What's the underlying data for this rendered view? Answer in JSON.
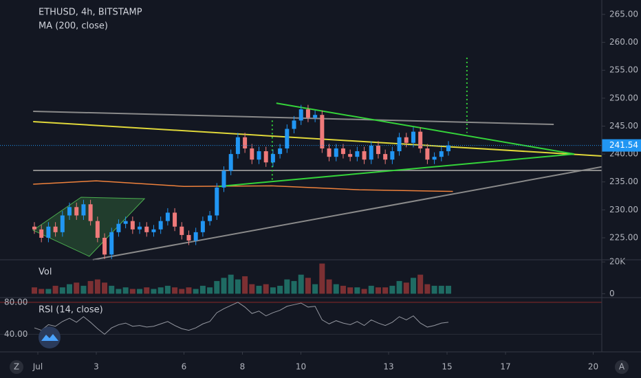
{
  "chart_data": {
    "type": "candlestick",
    "title": "ETHUSD, 4h, BITSTAMP",
    "up_color": "#2196f3",
    "down_color": "#ef7a7a",
    "open": [
      227,
      226.5,
      225,
      227,
      226,
      229,
      230.5,
      229,
      231,
      228,
      225,
      222,
      226,
      227.5,
      228,
      226.5,
      227,
      226,
      226.5,
      228,
      229.5,
      227,
      225.5,
      224.5,
      226,
      228,
      229,
      234,
      237,
      240,
      243,
      241,
      239,
      240.5,
      238.5,
      240,
      241,
      244.5,
      246,
      248,
      246.5,
      247,
      241,
      239.5,
      241,
      240,
      239.5,
      240.5,
      239,
      241.5,
      240,
      239,
      240.5,
      243,
      242,
      244,
      241,
      239,
      239.5,
      240.5
    ],
    "high": [
      227.8,
      227.3,
      227.8,
      227.8,
      229.8,
      231.3,
      231.3,
      231.8,
      231.8,
      228.8,
      225.8,
      226.8,
      228.3,
      228.8,
      228.8,
      227.8,
      227.8,
      227.3,
      228.8,
      230.3,
      230.3,
      227.8,
      226.3,
      226.8,
      228.8,
      229.8,
      234.8,
      237.8,
      240.8,
      243.8,
      243.8,
      241.8,
      241.3,
      241.3,
      240.8,
      241.8,
      245.3,
      246.8,
      248.8,
      248.8,
      247.8,
      247.8,
      241.8,
      241.8,
      241.8,
      240.8,
      241.3,
      241.3,
      242.3,
      242.3,
      240.8,
      241.3,
      243.8,
      243.8,
      244.8,
      244.8,
      241.8,
      240.3,
      241.3,
      242.3
    ],
    "low": [
      225.7,
      224.2,
      224.2,
      225.2,
      225.2,
      228.2,
      228.2,
      228.2,
      227.2,
      224.2,
      221.2,
      221.2,
      225.2,
      226.7,
      225.7,
      225.7,
      225.2,
      225.2,
      225.7,
      227.2,
      226.2,
      224.7,
      223.7,
      223.7,
      225.2,
      227.2,
      228.2,
      233.2,
      236.2,
      239.2,
      240.2,
      238.2,
      238.2,
      237.7,
      237.7,
      239.2,
      240.2,
      243.7,
      245.2,
      245.7,
      245.7,
      240.2,
      238.7,
      238.7,
      239.2,
      238.7,
      238.7,
      238.2,
      238.2,
      239.2,
      238.2,
      238.2,
      239.7,
      241.2,
      241.2,
      240.2,
      238.2,
      238.2,
      238.7,
      239.7
    ],
    "close": [
      226.5,
      225,
      227,
      226,
      229,
      230.5,
      229,
      231,
      228,
      225,
      222,
      226,
      227.5,
      228,
      226.5,
      227,
      226,
      226.5,
      228,
      229.5,
      227,
      225.5,
      224.5,
      226,
      228,
      229,
      234,
      237,
      240,
      243,
      241,
      239,
      240.5,
      238.5,
      240,
      241,
      244.5,
      246,
      248,
      246.5,
      247,
      241,
      239.5,
      241,
      240,
      239.5,
      240.5,
      239,
      241.5,
      240,
      239,
      240.5,
      243,
      242,
      244,
      241,
      239,
      239.5,
      240.5,
      241.54
    ],
    "ylim": [
      221.06,
      267.58
    ],
    "yticks": [
      {
        "value": 225,
        "label": "225.00"
      },
      {
        "value": 230,
        "label": "230.00"
      },
      {
        "value": 235,
        "label": "235.00"
      },
      {
        "value": 240,
        "label": "240.00"
      },
      {
        "value": 245,
        "label": "245.00"
      },
      {
        "value": 250,
        "label": "250.00"
      },
      {
        "value": 255,
        "label": "255.00"
      },
      {
        "value": 260,
        "label": "260.00"
      },
      {
        "value": 265,
        "label": "265.00"
      }
    ],
    "xlim": [
      -1.294,
      19.294
    ],
    "xticks": [
      {
        "value": 0,
        "label": "Jul"
      },
      {
        "value": 2,
        "label": "3"
      },
      {
        "value": 5,
        "label": "6"
      },
      {
        "value": 7,
        "label": "8"
      },
      {
        "value": 9,
        "label": "10"
      },
      {
        "value": 12,
        "label": "13"
      },
      {
        "value": 14,
        "label": "15"
      },
      {
        "value": 16,
        "label": "17"
      },
      {
        "value": 19,
        "label": "20"
      }
    ],
    "ma": {
      "name": "MA (200, close)",
      "color": "#f0823c",
      "x": [
        -0.16,
        2,
        5,
        8,
        11,
        14.2
      ],
      "values": [
        234.6,
        235.2,
        234.2,
        234.3,
        233.6,
        233.3
      ]
    },
    "drawings": [
      {
        "color": "#8a8a8a",
        "x": [
          -0.16,
          17.65
        ],
        "values": [
          247.65,
          245.3
        ]
      },
      {
        "color": "#8a8a8a",
        "x": [
          -0.16,
          19.29
        ],
        "values": [
          237.06,
          237.06
        ]
      },
      {
        "color": "#8a8a8a",
        "x": [
          1.88,
          19.29
        ],
        "values": [
          221.06,
          237.7
        ]
      },
      {
        "color": "#e0d83a",
        "x": [
          -0.16,
          19.29
        ],
        "values": [
          245.8,
          239.65
        ]
      },
      {
        "color": "#35d43a",
        "x": [
          8.16,
          18.35
        ],
        "values": [
          249.1,
          240.0
        ]
      },
      {
        "color": "#35d43a",
        "x": [
          6.19,
          18.35
        ],
        "values": [
          234.2,
          240.0
        ]
      },
      {
        "color": "#35d43a",
        "dotted": true,
        "x": [
          8.02,
          8.02
        ],
        "values": [
          246.0,
          235.3
        ]
      },
      {
        "color": "#35d43a",
        "dotted": true,
        "x": [
          14.68,
          14.68
        ],
        "values": [
          257.25,
          243.8
        ]
      }
    ],
    "pattern": {
      "color": "#4caf50",
      "x": [
        -0.16,
        1.48,
        3.65,
        1.76
      ],
      "values": [
        226.35,
        232.26,
        232.0,
        221.68
      ]
    },
    "volume": {
      "name": "Vol",
      "up_color": "#1f6b63",
      "down_color": "#7c3033",
      "values": [
        4000,
        3000,
        3000,
        5000,
        4000,
        6000,
        7000,
        5000,
        8000,
        9000,
        7000,
        5000,
        3000,
        4000,
        3000,
        3000,
        4000,
        3000,
        4000,
        5000,
        4000,
        3000,
        4000,
        3000,
        5000,
        4000,
        8000,
        10000,
        12000,
        9000,
        11000,
        6000,
        5000,
        6000,
        4000,
        5000,
        9000,
        8000,
        12000,
        10000,
        6000,
        19000,
        9000,
        6000,
        5000,
        4000,
        4000,
        3000,
        5000,
        4000,
        4000,
        5000,
        8000,
        7000,
        10000,
        12000,
        6000,
        5000,
        5000,
        5000
      ],
      "ylim": [
        -2000,
        20500
      ],
      "yticks": [
        {
          "value": 20000,
          "label": "20K"
        },
        0
      ]
    },
    "rsi": {
      "name": "RSI (14, close)",
      "color": "#9598a1",
      "values": [
        48,
        45,
        52,
        50,
        56,
        60,
        55,
        62,
        55,
        47,
        40,
        48,
        52,
        54,
        50,
        51,
        49,
        50,
        53,
        56,
        51,
        47,
        45,
        48,
        53,
        56,
        67,
        72,
        76,
        80,
        74,
        66,
        69,
        63,
        67,
        70,
        75,
        77,
        79,
        74,
        75,
        58,
        53,
        57,
        54,
        52,
        56,
        51,
        58,
        54,
        51,
        55,
        62,
        58,
        63,
        54,
        49,
        51,
        54,
        55
      ],
      "ylim": [
        18,
        85
      ],
      "yticks": [
        {
          "value": 80,
          "label": "80.00"
        },
        {
          "value": 40,
          "label": "40.00"
        }
      ]
    },
    "ui": {
      "left_button": "Z",
      "right_button": "A"
    }
  }
}
